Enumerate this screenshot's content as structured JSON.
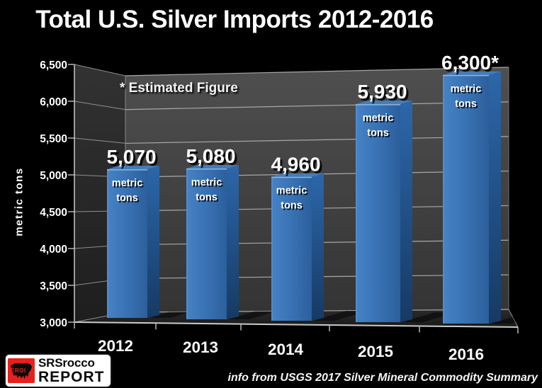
{
  "title": "Total U.S. Silver Imports 2012-2016",
  "annotation": "* Estimated Figure",
  "footer": {
    "source": "info from USGS 2017 Silver Mineral Commodity Summary",
    "logo": {
      "badge": "EROI",
      "name_top": "SRSrocco",
      "name_bottom": "REPORT"
    }
  },
  "colors": {
    "background": "#000000",
    "bar_front": "#3B74B7",
    "bar_side": "#1B4678",
    "bar_top": "#447CBA",
    "back_wall": "#464646",
    "left_wall": "#2A2A2A",
    "floor": "#222222",
    "gridline": "#A8A8A8",
    "text": "#FFFFFF",
    "logo_red": "#E8201C"
  },
  "chart_data": {
    "type": "bar",
    "projection": "3d",
    "title": "Total U.S. Silver Imports 2012-2016",
    "categories": [
      "2012",
      "2013",
      "2014",
      "2015",
      "2016"
    ],
    "values": [
      5070,
      5080,
      4960,
      5930,
      6300
    ],
    "value_labels": [
      "5,070",
      "5,080",
      "4,960",
      "5,930",
      "6,300*"
    ],
    "estimated_flags": [
      false,
      false,
      false,
      false,
      true
    ],
    "bar_unit_lines": [
      "metric",
      "tons"
    ],
    "xlabel": "",
    "ylabel": "metric tons",
    "ylim": [
      3000,
      6500
    ],
    "yticks": [
      3000,
      3500,
      4000,
      4500,
      5000,
      5500,
      6000,
      6500
    ],
    "ytick_labels_top_to_bottom": [
      "6,500",
      "6,000",
      "5,500",
      "5,000",
      "4,500",
      "4,000",
      "3,500",
      "3,000"
    ],
    "annotation": "* Estimated Figure",
    "grid": true,
    "legend": "none",
    "source_note": "info from USGS 2017 Silver Mineral Commodity Summary"
  }
}
